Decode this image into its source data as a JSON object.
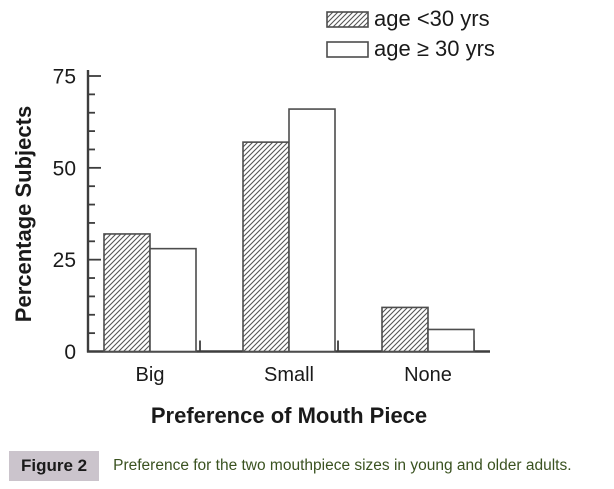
{
  "chart_data": {
    "type": "bar",
    "title": "",
    "categories": [
      "Big",
      "Small",
      "None"
    ],
    "series": [
      {
        "name": "age <30 yrs",
        "pattern": "hatched",
        "values": [
          32,
          57,
          12
        ]
      },
      {
        "name": "age ≥ 30 yrs",
        "pattern": "white",
        "values": [
          28,
          66,
          6
        ]
      }
    ],
    "xlabel": "Preference of Mouth Piece",
    "ylabel": "Percentage Subjects",
    "ylim": [
      0,
      75
    ],
    "yticks": [
      0,
      25,
      50,
      75
    ],
    "minor_tick_step": 5,
    "grid": false,
    "legend_position": "top-right"
  },
  "caption": {
    "label": "Figure 2",
    "text": "Preference for the two mouthpiece sizes in young and older adults."
  },
  "colors": {
    "background": "#ffffff",
    "axis": "#3d3d3d",
    "bar_stroke": "#4d4d4d",
    "hatch_line": "#555555",
    "bar_fill_white": "#ffffff",
    "text": "#1a1a1a",
    "caption_label_bg": "#cbc4cc",
    "caption_label_fg": "#1a1a1a",
    "caption_fg": "#3a5220"
  }
}
